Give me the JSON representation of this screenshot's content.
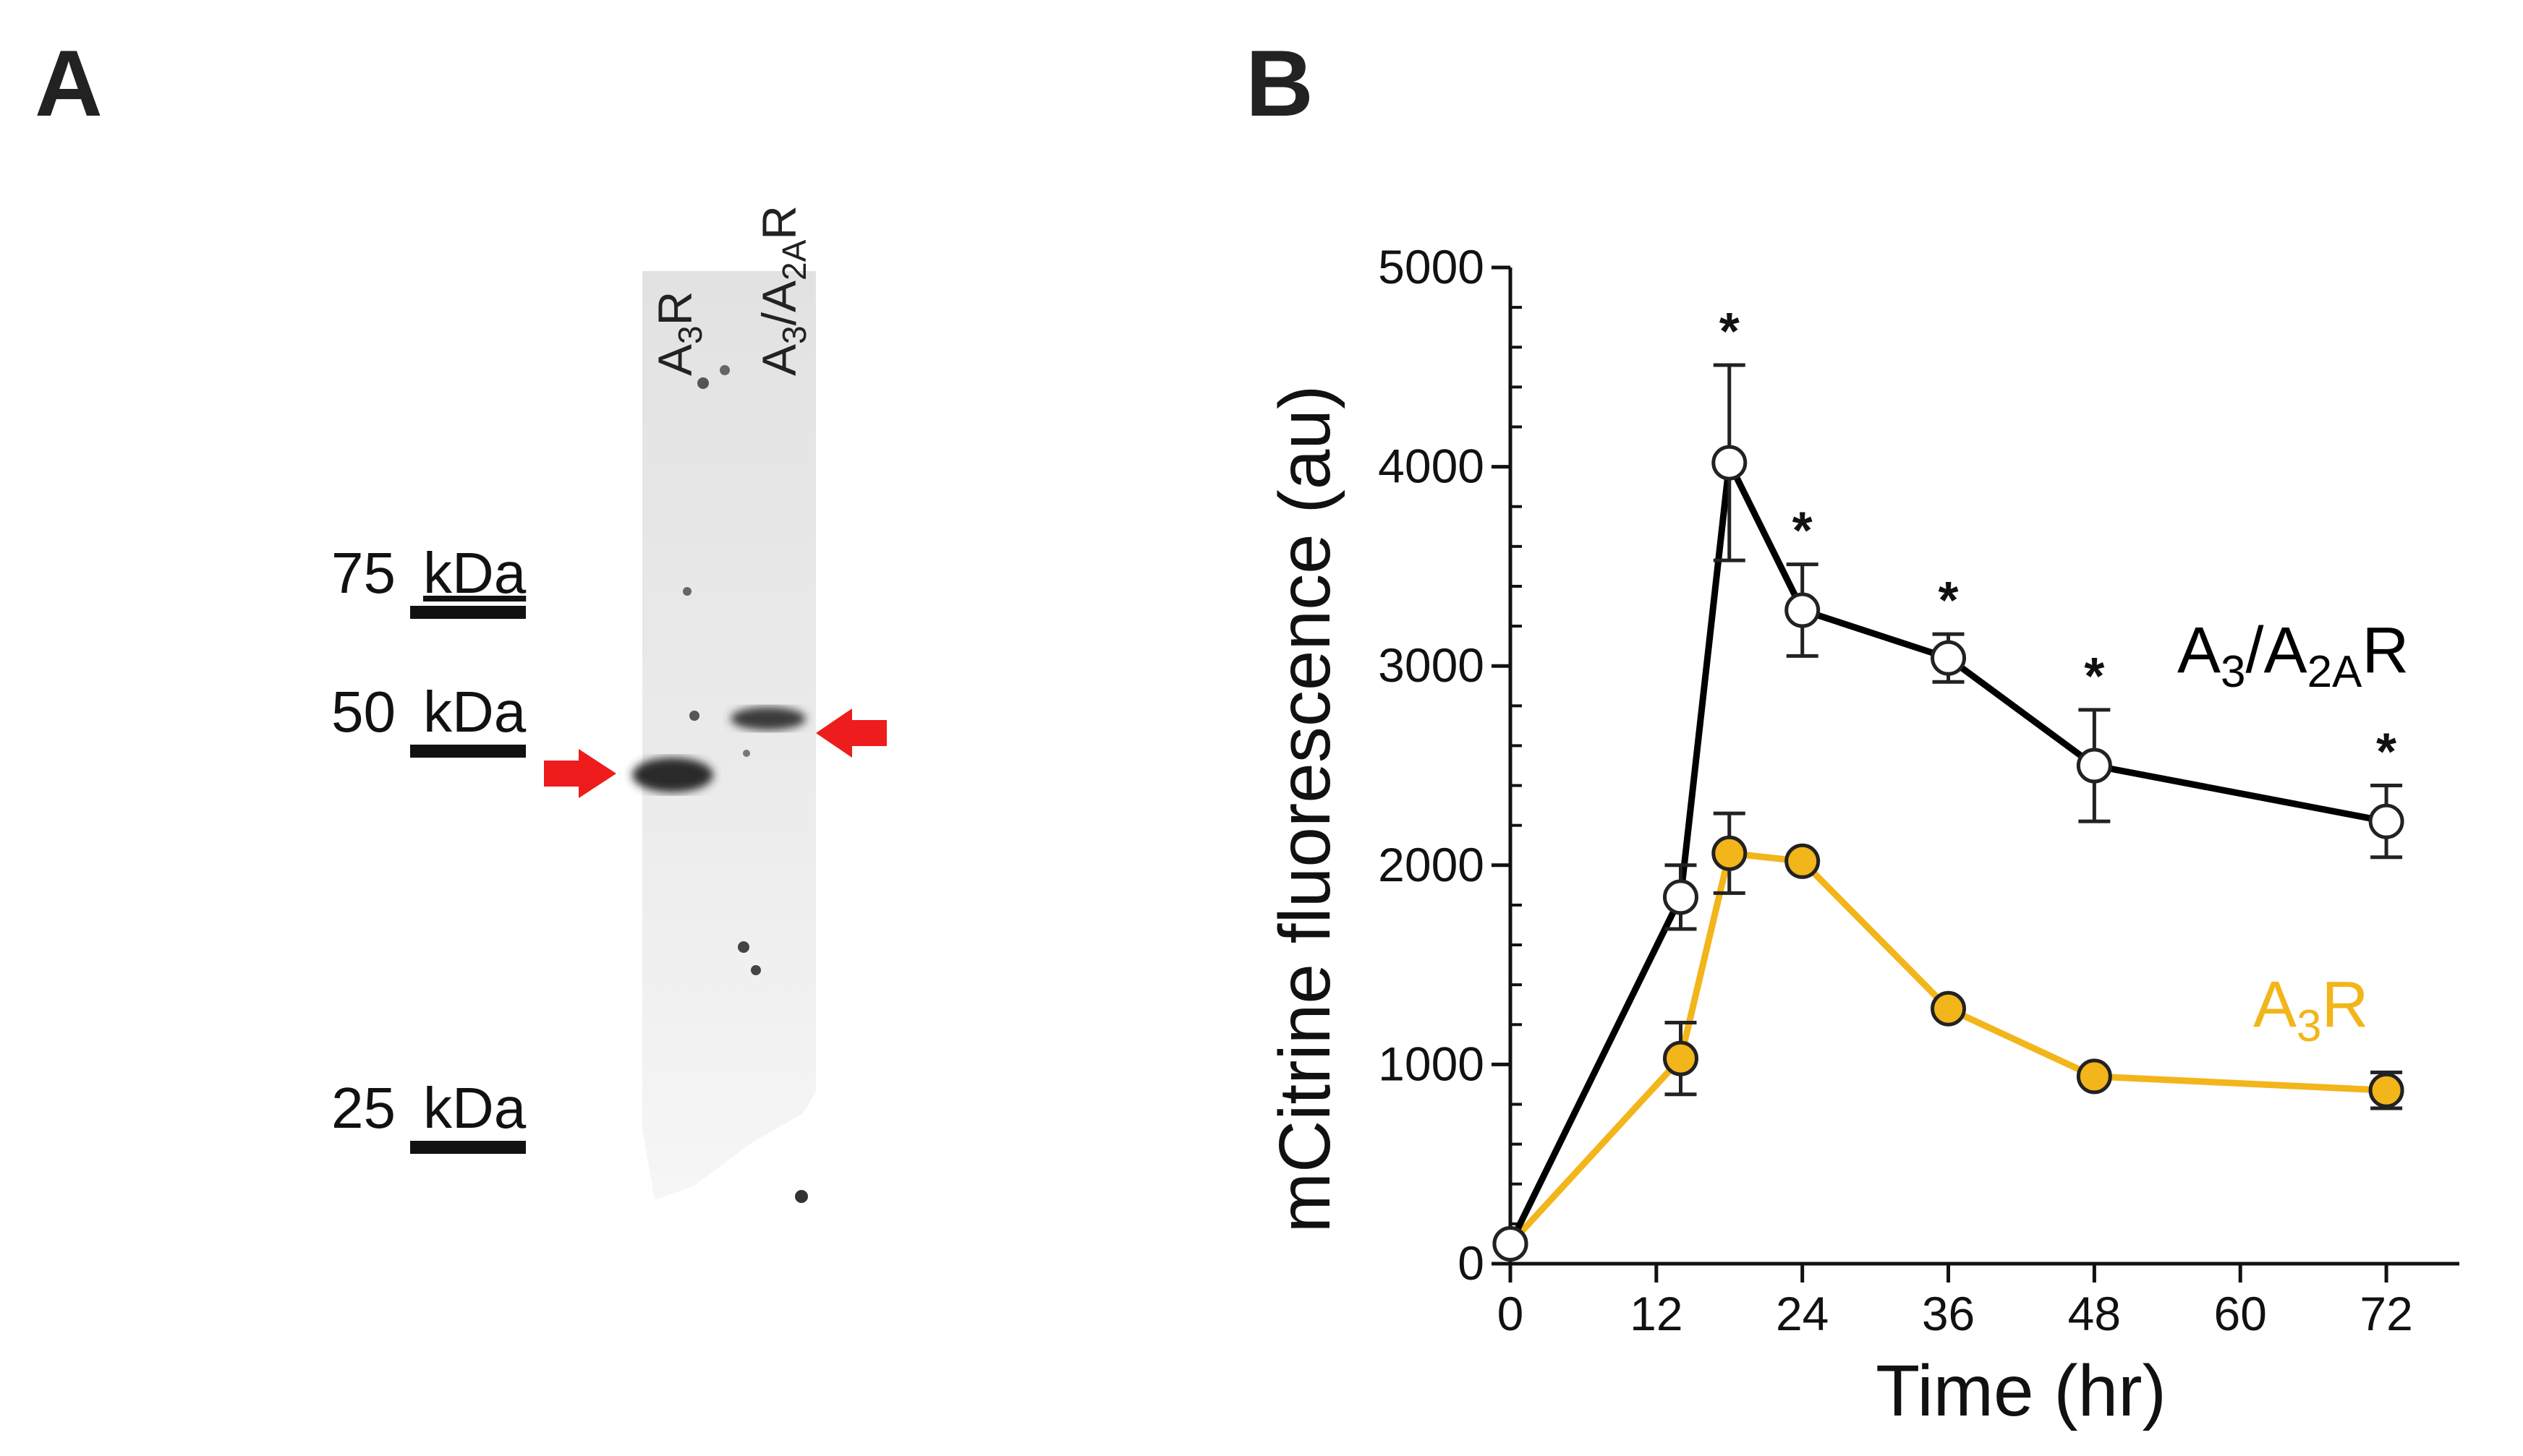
{
  "panel_a": {
    "letter": "A",
    "lanes": [
      {
        "base": "A",
        "sub": "3",
        "tail": "R"
      },
      {
        "base": "A",
        "sub": "3",
        "mid": "/A",
        "sub2": "2A",
        "tail": "R"
      }
    ],
    "markers": [
      {
        "label": "75",
        "unit": "kDa"
      },
      {
        "label": "50",
        "unit": "kDa"
      },
      {
        "label": "25",
        "unit": "kDa"
      }
    ],
    "arrow_color": "#ee1c1c"
  },
  "panel_b": {
    "letter": "B"
  },
  "chart_data": {
    "type": "line",
    "xlabel": "Time (hr)",
    "ylabel": "mCitrine fluorescence (au)",
    "xlim": [
      0,
      78
    ],
    "ylim": [
      0,
      5000
    ],
    "xticks": [
      0,
      12,
      24,
      36,
      48,
      60,
      72
    ],
    "yticks": [
      0,
      1000,
      2000,
      3000,
      4000,
      5000
    ],
    "yminor_step": 200,
    "series": [
      {
        "name": "A3/A2AR",
        "label_parts": {
          "base": "A",
          "sub": "3",
          "mid": "/A",
          "sub2": "2A",
          "tail": "R"
        },
        "color": "#000000",
        "marker": "open-circle",
        "x": [
          0,
          14,
          18,
          24,
          36,
          48,
          72
        ],
        "y": [
          100,
          1840,
          4020,
          3280,
          3040,
          2500,
          2220
        ],
        "err": [
          0,
          160,
          490,
          230,
          120,
          280,
          180
        ],
        "significant": [
          false,
          false,
          true,
          true,
          true,
          true,
          true
        ]
      },
      {
        "name": "A3R",
        "label_parts": {
          "base": "A",
          "sub": "3",
          "tail": "R"
        },
        "color": "#f2b51a",
        "marker": "filled-circle",
        "x": [
          0,
          14,
          18,
          24,
          36,
          48,
          72
        ],
        "y": [
          100,
          1030,
          2060,
          2020,
          1280,
          940,
          870
        ],
        "err": [
          0,
          180,
          200,
          0,
          0,
          0,
          90
        ],
        "significant": [
          false,
          false,
          false,
          false,
          false,
          false,
          false
        ]
      }
    ],
    "annotation": "*"
  }
}
